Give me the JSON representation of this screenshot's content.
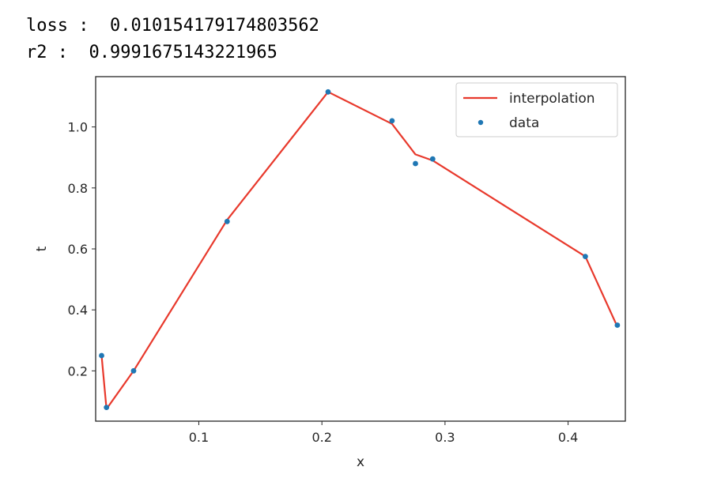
{
  "output": {
    "loss_key": "loss",
    "loss_sep": " :",
    "loss_value": "0.010154179174803562",
    "r2_key": "r2",
    "r2_sep": " :",
    "r2_value": "0.9991675143221965"
  },
  "chart_data": {
    "type": "line",
    "xlabel": "x",
    "ylabel": "t",
    "xlim": [
      0.0162,
      0.4465
    ],
    "ylim": [
      0.035,
      1.165
    ],
    "xticks": [
      0.1,
      0.2,
      0.3,
      0.4
    ],
    "xtick_labels": [
      "0.1",
      "0.2",
      "0.3",
      "0.4"
    ],
    "yticks": [
      0.2,
      0.4,
      0.6,
      0.8,
      1.0
    ],
    "ytick_labels": [
      "0.2",
      "0.4",
      "0.6",
      "0.8",
      "1.0"
    ],
    "grid": false,
    "legend_position": "top-right",
    "colors": {
      "interpolation": "#e8392c",
      "data": "#1f77b4",
      "axes": "#262626"
    },
    "series": [
      {
        "name": "interpolation",
        "kind": "line",
        "x": [
          0.021,
          0.025,
          0.047,
          0.123,
          0.205,
          0.257,
          0.276,
          0.29,
          0.414,
          0.44
        ],
        "y": [
          0.25,
          0.075,
          0.2,
          0.695,
          1.115,
          1.01,
          0.91,
          0.89,
          0.575,
          0.345
        ]
      },
      {
        "name": "data",
        "kind": "scatter",
        "x": [
          0.021,
          0.025,
          0.047,
          0.123,
          0.205,
          0.257,
          0.276,
          0.29,
          0.414,
          0.44
        ],
        "y": [
          0.25,
          0.08,
          0.2,
          0.69,
          1.115,
          1.02,
          0.88,
          0.895,
          0.575,
          0.35
        ]
      }
    ]
  }
}
